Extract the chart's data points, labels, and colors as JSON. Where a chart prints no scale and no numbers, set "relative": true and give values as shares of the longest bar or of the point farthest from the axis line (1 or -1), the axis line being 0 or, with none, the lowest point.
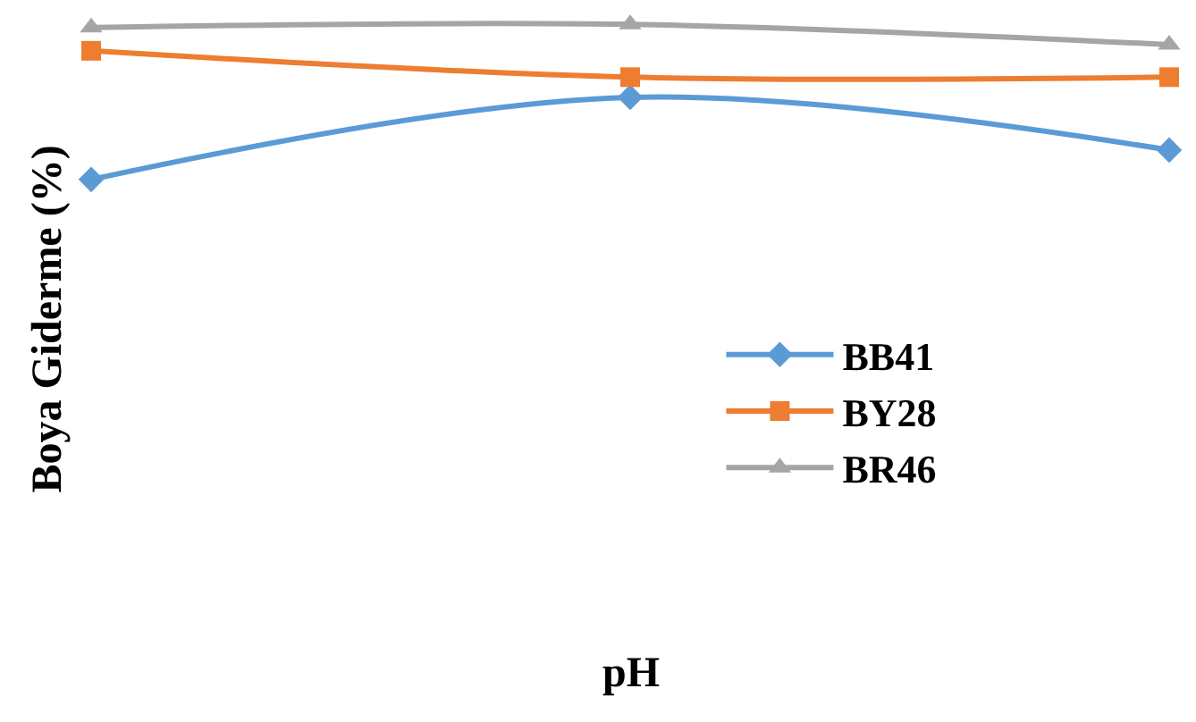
{
  "chart_data": {
    "type": "line",
    "relative": true,
    "ylabel": "Boya Giderme (%)",
    "annotations": [
      "pH"
    ],
    "categories": [
      null,
      null,
      null
    ],
    "legend": "right",
    "series": [
      {
        "name": "BB41",
        "color": "#5b9bd5",
        "marker": "diamond",
        "values": [
          0,
          0.53,
          0.19
        ]
      },
      {
        "name": "BY28",
        "color": "#ed7d31",
        "marker": "square",
        "values": [
          0.83,
          0.66,
          0.66
        ]
      },
      {
        "name": "BR46",
        "color": "#a5a5a5",
        "marker": "triangle",
        "values": [
          0.98,
          1,
          0.87
        ]
      }
    ]
  }
}
